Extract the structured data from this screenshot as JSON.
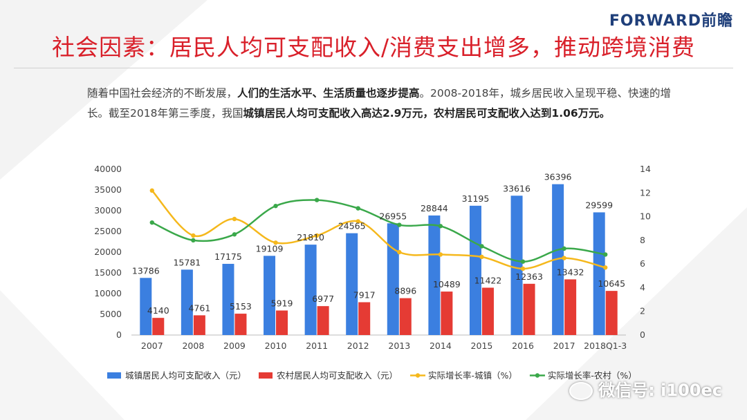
{
  "logo": "FORWARD前瞻",
  "title": "社会因素：居民人均可支配收入/消费支出增多，推动跨境消费",
  "intro": {
    "p1": "随着中国社会经济的不断发展，",
    "b1": "人们的生活水平、生活质量也逐步提高",
    "p2": "。2008-2018年，城乡居民收入呈现平稳、快速的增长。截至2018年第三季度，我国",
    "b2": "城镇居民人均可支配收入高达2.9万元，农村居民可支配收入达到1.06万元。"
  },
  "watermark": "微信号: i100ec",
  "chart_data": {
    "type": "bar",
    "categories": [
      "2007",
      "2008",
      "2009",
      "2010",
      "2011",
      "2012",
      "2013",
      "2014",
      "2015",
      "2016",
      "2017",
      "2018Q1-3"
    ],
    "series": [
      {
        "name": "城镇居民人均可支配收入（元）",
        "kind": "bar",
        "axis": "left",
        "color": "#3b7fe0",
        "values": [
          13786,
          15781,
          17175,
          19109,
          21810,
          24565,
          26955,
          28844,
          31195,
          33616,
          36396,
          29599
        ]
      },
      {
        "name": "农村居民人均可支配收入（元）",
        "kind": "bar",
        "axis": "left",
        "color": "#e53b34",
        "values": [
          4140,
          4761,
          5153,
          5919,
          6977,
          7917,
          8896,
          10489,
          11422,
          12363,
          13432,
          10645
        ]
      },
      {
        "name": "实际增长率-城镇（%）",
        "kind": "line",
        "axis": "right",
        "color": "#f5b81c",
        "values": [
          12.2,
          8.4,
          9.8,
          7.8,
          8.4,
          9.6,
          7.0,
          6.8,
          6.6,
          5.6,
          6.5,
          5.7
        ]
      },
      {
        "name": "实际增长率-农村（%）",
        "kind": "line",
        "axis": "right",
        "color": "#3aa84a",
        "values": [
          9.5,
          8.0,
          8.5,
          10.9,
          11.4,
          10.7,
          9.3,
          9.2,
          7.5,
          6.2,
          7.3,
          6.8
        ]
      }
    ],
    "y_left": {
      "min": 0,
      "max": 40000,
      "ticks": [
        0,
        5000,
        10000,
        15000,
        20000,
        25000,
        30000,
        35000,
        40000
      ]
    },
    "y_right": {
      "min": 0,
      "max": 14,
      "ticks": [
        0,
        2,
        4,
        6,
        8,
        10,
        12,
        14
      ]
    },
    "legend": "bottom",
    "grid": false,
    "data_labels": true
  }
}
